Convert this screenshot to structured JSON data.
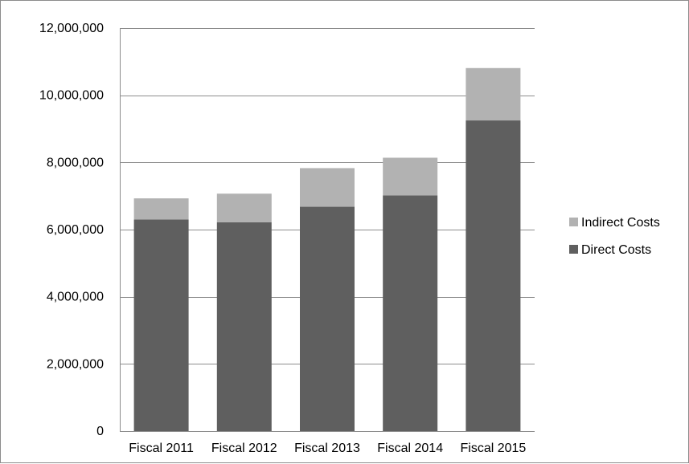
{
  "chart_data": {
    "type": "bar",
    "stacked": true,
    "title": "",
    "xlabel": "",
    "ylabel": "",
    "categories": [
      "Fiscal 2011",
      "Fiscal 2012",
      "Fiscal 2013",
      "Fiscal 2014",
      "Fiscal 2015"
    ],
    "series": [
      {
        "name": "Direct Costs",
        "color": "#5f5f5f",
        "values": [
          6300000,
          6220000,
          6680000,
          7020000,
          9250000
        ]
      },
      {
        "name": "Indirect Costs",
        "color": "#b2b2b2",
        "values": [
          630000,
          850000,
          1150000,
          1120000,
          1560000
        ]
      }
    ],
    "ylim": [
      0,
      12000000
    ],
    "yticks": [
      "0",
      "2,000,000",
      "4,000,000",
      "6,000,000",
      "8,000,000",
      "10,000,000",
      "12,000,000"
    ],
    "ytick_values": [
      0,
      2000000,
      4000000,
      6000000,
      8000000,
      10000000,
      12000000
    ],
    "grid": true,
    "legend": {
      "placement": "right",
      "entries": [
        "Indirect Costs",
        "Direct Costs"
      ]
    },
    "colors": {
      "gridline": "#8c8c8c",
      "axis": "#8c8c8c"
    }
  }
}
